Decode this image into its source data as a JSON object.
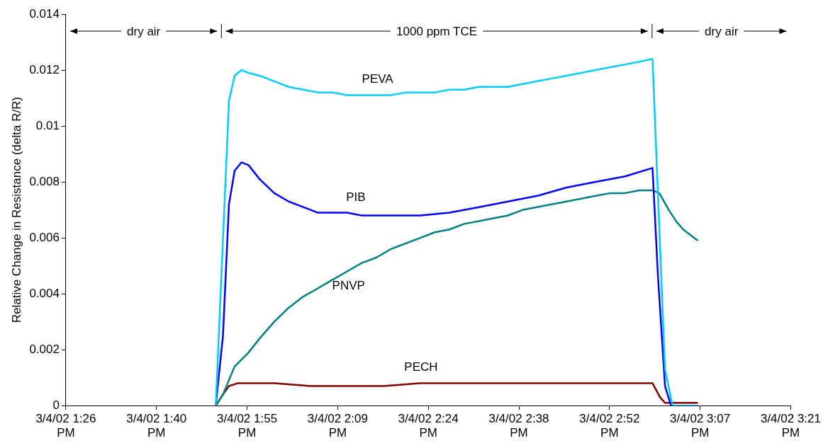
{
  "chart_data": {
    "type": "line",
    "ylabel": "Relative Change in Resistance (delta R/R)",
    "xlim": [
      "--03-04T13:26:24",
      "--03-04T15:21:36"
    ],
    "xticks": [
      {
        "value": "--03-04T13:26:24",
        "label": "3/4/02 1:26 PM"
      },
      {
        "value": "--03-04T13:40:48",
        "label": "3/4/02 1:40 PM"
      },
      {
        "value": "--03-04T13:55:12",
        "label": "3/4/02 1:55 PM"
      },
      {
        "value": "--03-04T14:09:36",
        "label": "3/4/02 2:09 PM"
      },
      {
        "value": "--03-04T14:24:00",
        "label": "3/4/02 2:24 PM"
      },
      {
        "value": "--03-04T14:38:24",
        "label": "3/4/02 2:38 PM"
      },
      {
        "value": "--03-04T14:52:48",
        "label": "3/4/02 2:52 PM"
      },
      {
        "value": "--03-04T15:07:12",
        "label": "3/4/02 3:07 PM"
      },
      {
        "value": "--03-04T15:21:36",
        "label": "3/4/02 3:21 PM"
      }
    ],
    "ylim": [
      0,
      0.014
    ],
    "yticks": [
      0,
      0.002,
      0.004,
      0.006,
      0.008,
      0.01,
      0.012,
      0.014
    ],
    "grid": false,
    "legend": false,
    "marker": "none",
    "line_style": "solid",
    "annotations": [
      "dry air",
      "1000 ppm TCE",
      "dry air"
    ],
    "series": [
      {
        "name": "PEVA",
        "color": "#00ccff",
        "x": [
          "--03-04T13:50:13",
          "--03-04T13:52:19",
          "--03-04T13:53:13",
          "--03-04T13:54:18",
          "--03-04T13:55:26",
          "--03-04T13:57:11",
          "--03-04T13:59:31",
          "--03-04T14:01:48",
          "--03-04T14:04:08",
          "--03-04T14:06:29",
          "--03-04T14:08:46",
          "--03-04T14:11:06",
          "--03-04T14:13:26",
          "--03-04T14:15:47",
          "--03-04T14:18:04",
          "--03-04T14:20:24",
          "--03-04T14:22:44",
          "--03-04T14:25:01",
          "--03-04T14:27:22",
          "--03-04T14:29:42",
          "--03-04T14:32:02",
          "--03-04T14:34:19",
          "--03-04T14:36:40",
          "--03-04T14:39:00",
          "--03-04T14:41:17",
          "--03-04T14:43:37",
          "--03-04T14:45:58",
          "--03-04T14:48:18",
          "--03-04T14:50:35",
          "--03-04T14:52:55",
          "--03-04T14:55:16",
          "--03-04T14:57:32",
          "--03-04T14:59:38",
          "--03-04T15:01:37",
          "--03-04T15:02:49",
          "--03-04T15:06:50"
        ],
        "values": [
          0,
          0.0109,
          0.0118,
          0.012,
          0.0119,
          0.0118,
          0.0116,
          0.0114,
          0.0113,
          0.0112,
          0.0112,
          0.0111,
          0.0111,
          0.0111,
          0.0111,
          0.0112,
          0.0112,
          0.0112,
          0.0113,
          0.0113,
          0.0114,
          0.0114,
          0.0114,
          0.0115,
          0.0116,
          0.0117,
          0.0118,
          0.0119,
          0.012,
          0.0121,
          0.0122,
          0.0123,
          0.0124,
          0.0013,
          0,
          0
        ]
      },
      {
        "name": "PIB",
        "color": "#0000ff",
        "x": [
          "--03-04T13:50:13",
          "--03-04T13:51:22",
          "--03-04T13:52:19",
          "--03-04T13:53:13",
          "--03-04T13:54:18",
          "--03-04T13:55:26",
          "--03-04T13:57:11",
          "--03-04T13:59:31",
          "--03-04T14:01:48",
          "--03-04T14:04:08",
          "--03-04T14:06:29",
          "--03-04T14:08:46",
          "--03-04T14:11:06",
          "--03-04T14:13:26",
          "--03-04T14:15:47",
          "--03-04T14:18:04",
          "--03-04T14:22:44",
          "--03-04T14:27:22",
          "--03-04T14:32:02",
          "--03-04T14:36:40",
          "--03-04T14:41:17",
          "--03-04T14:45:58",
          "--03-04T14:50:35",
          "--03-04T14:55:16",
          "--03-04T14:59:38",
          "--03-04T15:00:29",
          "--03-04T15:01:37",
          "--03-04T15:02:35",
          "--03-04T15:06:50"
        ],
        "values": [
          0,
          0.0025,
          0.0072,
          0.0084,
          0.0087,
          0.0086,
          0.0081,
          0.0076,
          0.0073,
          0.0071,
          0.0069,
          0.0069,
          0.0069,
          0.0068,
          0.0068,
          0.0068,
          0.0068,
          0.0069,
          0.0071,
          0.0073,
          0.0075,
          0.0078,
          0.008,
          0.0082,
          0.0085,
          0.0047,
          0.0007,
          0,
          0
        ]
      },
      {
        "name": "PNVP",
        "color": "#008080",
        "x": [
          "--03-04T13:50:13",
          "--03-04T13:51:22",
          "--03-04T13:53:13",
          "--03-04T13:55:26",
          "--03-04T13:57:11",
          "--03-04T13:59:31",
          "--03-04T14:01:48",
          "--03-04T14:04:08",
          "--03-04T14:06:29",
          "--03-04T14:08:46",
          "--03-04T14:11:06",
          "--03-04T14:13:26",
          "--03-04T14:15:47",
          "--03-04T14:18:04",
          "--03-04T14:20:24",
          "--03-04T14:22:44",
          "--03-04T14:25:01",
          "--03-04T14:27:22",
          "--03-04T14:29:42",
          "--03-04T14:32:02",
          "--03-04T14:34:19",
          "--03-04T14:36:40",
          "--03-04T14:39:00",
          "--03-04T14:41:17",
          "--03-04T14:43:37",
          "--03-04T14:45:58",
          "--03-04T14:48:18",
          "--03-04T14:50:35",
          "--03-04T14:52:55",
          "--03-04T14:55:16",
          "--03-04T14:57:32",
          "--03-04T14:59:38",
          "--03-04T15:00:43",
          "--03-04T15:02:13",
          "--03-04T15:03:22",
          "--03-04T15:04:30",
          "--03-04T15:06:50"
        ],
        "values": [
          0,
          0.0004,
          0.0014,
          0.0019,
          0.0024,
          0.003,
          0.0035,
          0.0039,
          0.0042,
          0.0045,
          0.0048,
          0.0051,
          0.0053,
          0.0056,
          0.0058,
          0.006,
          0.0062,
          0.0063,
          0.0065,
          0.0066,
          0.0067,
          0.0068,
          0.007,
          0.0071,
          0.0072,
          0.0073,
          0.0074,
          0.0075,
          0.0076,
          0.0076,
          0.0077,
          0.0077,
          0.0076,
          0.007,
          0.0066,
          0.0063,
          0.0059
        ]
      },
      {
        "name": "PECH",
        "color": "#800000",
        "x": [
          "--03-04T13:50:13",
          "--03-04T13:51:22",
          "--03-04T13:52:19",
          "--03-04T13:53:42",
          "--03-04T13:59:31",
          "--03-04T14:05:17",
          "--03-04T14:11:06",
          "--03-04T14:16:55",
          "--03-04T14:22:44",
          "--03-04T14:28:30",
          "--03-04T14:34:19",
          "--03-04T14:40:08",
          "--03-04T14:45:58",
          "--03-04T14:51:47",
          "--03-04T14:57:32",
          "--03-04T14:59:38",
          "--03-04T15:00:50",
          "--03-04T15:01:37",
          "--03-04T15:06:50"
        ],
        "values": [
          0,
          0.0004,
          0.0007,
          0.0008,
          0.0008,
          0.0007,
          0.0007,
          0.0007,
          0.0008,
          0.0008,
          0.0008,
          0.0008,
          0.0008,
          0.0008,
          0.0008,
          0.0008,
          0.0003,
          0.0001,
          0.0001
        ]
      }
    ]
  }
}
